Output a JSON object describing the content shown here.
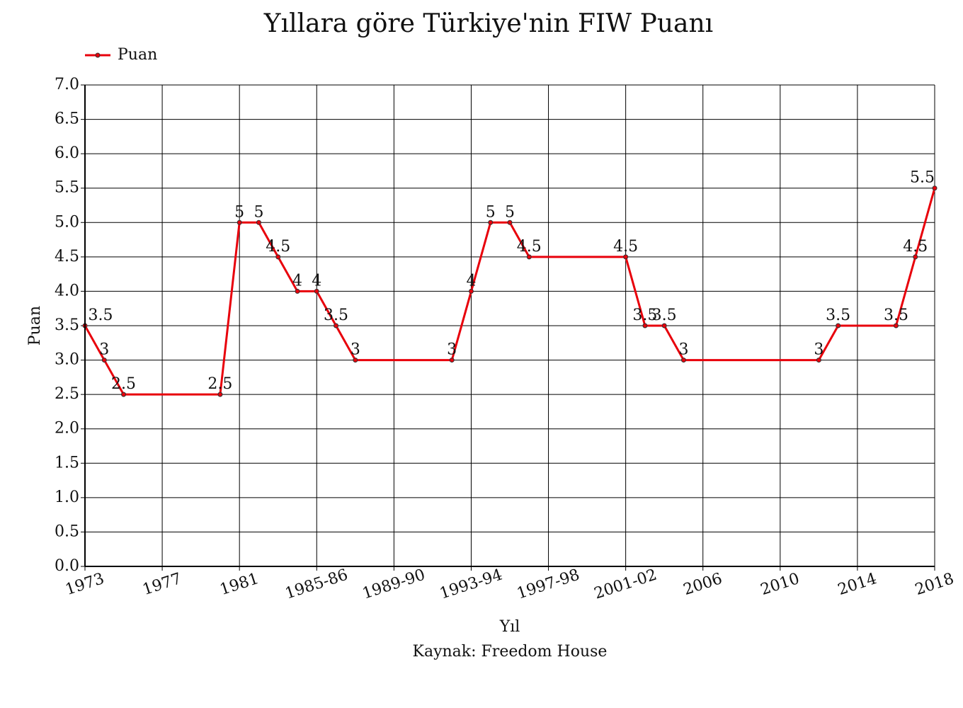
{
  "chart_data": {
    "type": "line",
    "title": "Yıllara göre Türkiye'nin FIW Puanı",
    "x_label": "Yıl",
    "y_label": "Puan",
    "source": "Kaynak: Freedom House",
    "categories": [
      "1973",
      null,
      null,
      null,
      "1977",
      null,
      null,
      null,
      "1981",
      null,
      null,
      null,
      "1985-86",
      null,
      null,
      null,
      "1989-90",
      null,
      null,
      null,
      "1993-94",
      null,
      null,
      null,
      "1997-98",
      null,
      null,
      null,
      "2001-02",
      null,
      null,
      null,
      "2006",
      null,
      null,
      null,
      "2010",
      null,
      null,
      null,
      "2014",
      null,
      null,
      null,
      "2018"
    ],
    "series": [
      {
        "name": "Puan",
        "color": "#e8000b",
        "values": [
          3.5,
          3,
          2.5,
          null,
          null,
          null,
          null,
          2.5,
          5,
          5,
          4.5,
          4,
          4,
          3.5,
          3,
          null,
          null,
          null,
          null,
          3,
          4,
          5,
          5,
          4.5,
          null,
          null,
          null,
          null,
          4.5,
          3.5,
          3.5,
          3,
          null,
          null,
          null,
          null,
          null,
          null,
          3,
          3.5,
          null,
          null,
          3.5,
          4.5,
          5.5
        ]
      }
    ],
    "span_gaps": true,
    "ylim": [
      0,
      7
    ],
    "yticks": [
      {
        "value": 0,
        "label": "0.0"
      },
      0.5,
      {
        "value": 1,
        "label": "1.0"
      },
      1.5,
      {
        "value": 2,
        "label": "2.0"
      },
      2.5,
      {
        "value": 3,
        "label": "3.0"
      },
      3.5,
      {
        "value": 4,
        "label": "4.0"
      },
      4.5,
      {
        "value": 5,
        "label": "5.0"
      },
      5.5,
      {
        "value": 6,
        "label": "6.0"
      },
      6.5,
      {
        "value": 7,
        "label": "7.0"
      }
    ],
    "grid": true,
    "legend": "top-left"
  }
}
